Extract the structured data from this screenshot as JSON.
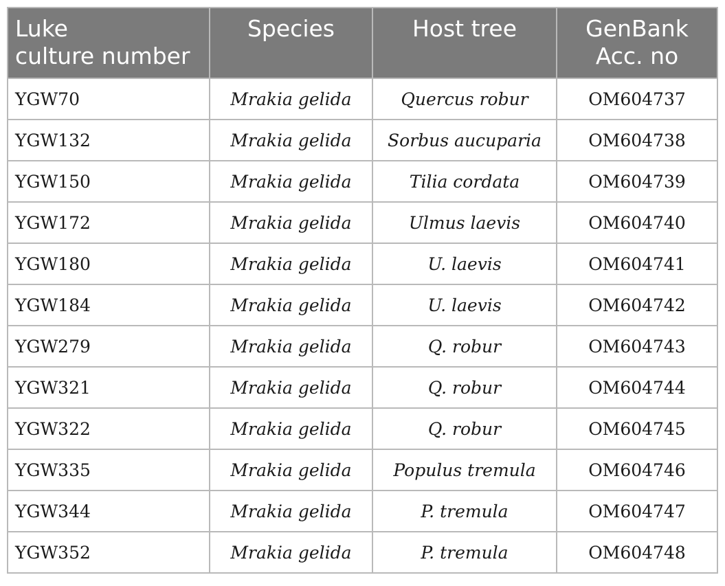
{
  "table": {
    "headers": [
      [
        "Luke",
        "culture number"
      ],
      [
        "Species"
      ],
      [
        "Host tree"
      ],
      [
        "GenBank",
        "Acc. no"
      ]
    ],
    "rows": [
      [
        "YGW70",
        "Mrakia gelida",
        "Quercus robur",
        "OM604737"
      ],
      [
        "YGW132",
        "Mrakia gelida",
        "Sorbus aucuparia",
        "OM604738"
      ],
      [
        "YGW150",
        "Mrakia gelida",
        "Tilia cordata",
        "OM604739"
      ],
      [
        "YGW172",
        "Mrakia gelida",
        "Ulmus laevis",
        "OM604740"
      ],
      [
        "YGW180",
        "Mrakia gelida",
        "U. laevis",
        "OM604741"
      ],
      [
        "YGW184",
        "Mrakia gelida",
        "U. laevis",
        "OM604742"
      ],
      [
        "YGW279",
        "Mrakia gelida",
        "Q. robur",
        "OM604743"
      ],
      [
        "YGW321",
        "Mrakia gelida",
        "Q. robur",
        "OM604744"
      ],
      [
        "YGW322",
        "Mrakia gelida",
        "Q. robur",
        "OM604745"
      ],
      [
        "YGW335",
        "Mrakia gelida",
        "Populus tremula",
        "OM604746"
      ],
      [
        "YGW344",
        "Mrakia gelida",
        "P. tremula",
        "OM604747"
      ],
      [
        "YGW352",
        "Mrakia gelida",
        "P. tremula",
        "OM604748"
      ]
    ]
  },
  "colors": {
    "header_bg": "#7b7b7b",
    "header_text": "#ffffff",
    "grid": "#b9b9b9"
  }
}
